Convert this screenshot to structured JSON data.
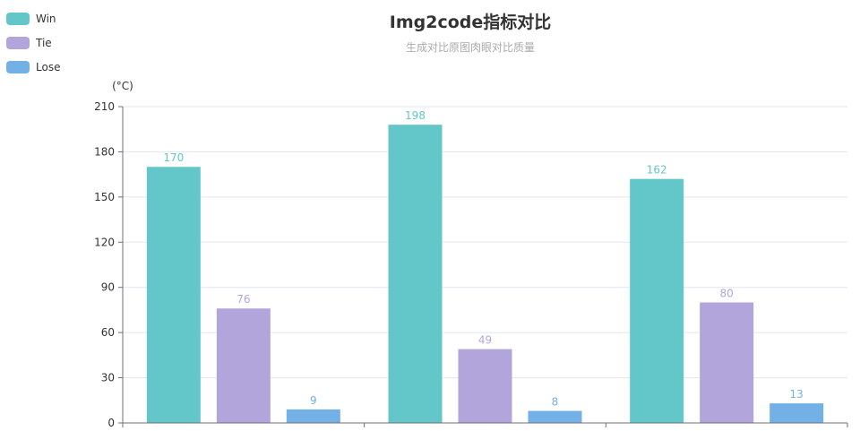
{
  "chart_data": {
    "type": "bar",
    "title": "Img2code指标对比",
    "subtitle": "生成对比原图肉眼对比质量",
    "ylabel": "(°C)",
    "ylim": [
      0,
      210
    ],
    "yticks": [
      0,
      30,
      60,
      90,
      120,
      150,
      180,
      210
    ],
    "grid": true,
    "legend_position": "top-left",
    "group_count": 3,
    "series": [
      {
        "name": "Win",
        "color": "#63c6c8",
        "values": [
          170,
          198,
          162
        ]
      },
      {
        "name": "Tie",
        "color": "#b2a5db",
        "values": [
          76,
          49,
          80
        ]
      },
      {
        "name": "Lose",
        "color": "#72b0e6",
        "values": [
          9,
          8,
          13
        ]
      }
    ]
  }
}
